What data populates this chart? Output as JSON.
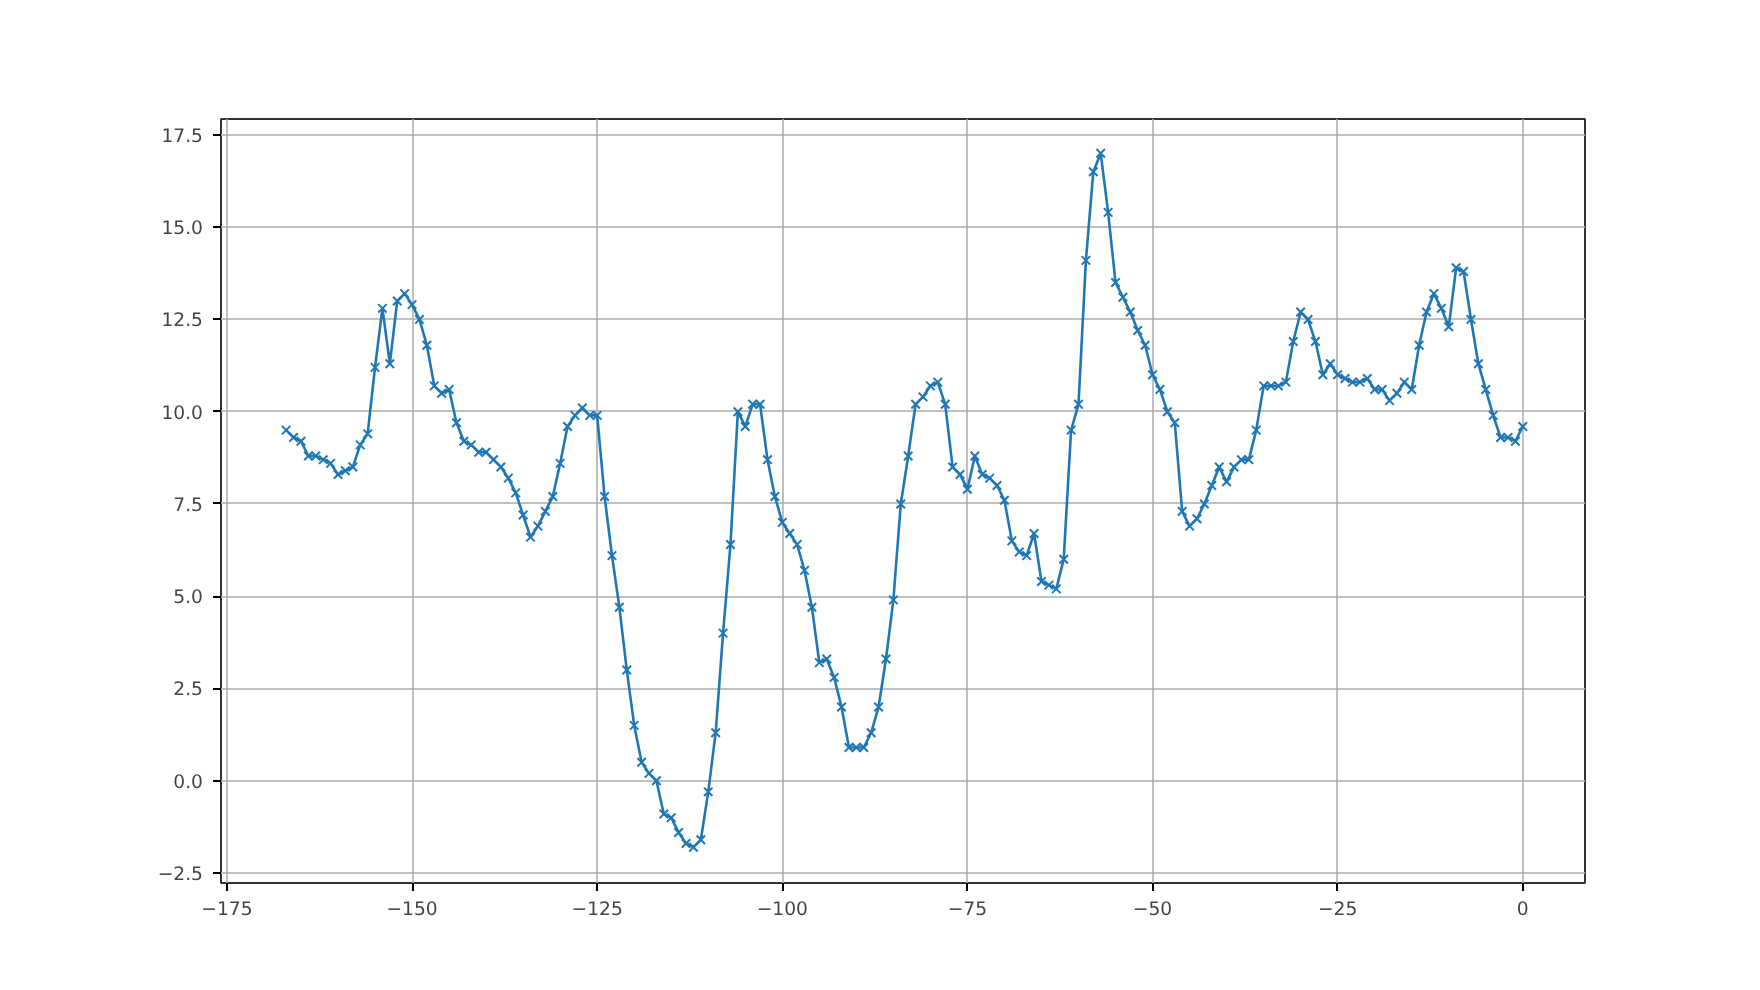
{
  "chart_data": {
    "type": "line",
    "x": [
      -167,
      -166,
      -165,
      -164,
      -163,
      -162,
      -161,
      -160,
      -159,
      -158,
      -157,
      -156,
      -155,
      -154,
      -153,
      -152,
      -151,
      -150,
      -149,
      -148,
      -147,
      -146,
      -145,
      -144,
      -143,
      -142,
      -141,
      -140,
      -139,
      -138,
      -137,
      -136,
      -135,
      -134,
      -133,
      -132,
      -131,
      -130,
      -129,
      -128,
      -127,
      -126,
      -125,
      -124,
      -123,
      -122,
      -121,
      -120,
      -119,
      -118,
      -117,
      -116,
      -115,
      -114,
      -113,
      -112,
      -111,
      -110,
      -109,
      -108,
      -107,
      -106,
      -105,
      -104,
      -103,
      -102,
      -101,
      -100,
      -99,
      -98,
      -97,
      -96,
      -95,
      -94,
      -93,
      -92,
      -91,
      -90,
      -89,
      -88,
      -87,
      -86,
      -85,
      -84,
      -83,
      -82,
      -81,
      -80,
      -79,
      -78,
      -77,
      -76,
      -75,
      -74,
      -73,
      -72,
      -71,
      -70,
      -69,
      -68,
      -67,
      -66,
      -65,
      -64,
      -63,
      -62,
      -61,
      -60,
      -59,
      -58,
      -57,
      -56,
      -55,
      -54,
      -53,
      -52,
      -51,
      -50,
      -49,
      -48,
      -47,
      -46,
      -45,
      -44,
      -43,
      -42,
      -41,
      -40,
      -39,
      -38,
      -37,
      -36,
      -35,
      -34,
      -33,
      -32,
      -31,
      -30,
      -29,
      -28,
      -27,
      -26,
      -25,
      -24,
      -23,
      -22,
      -21,
      -20,
      -19,
      -18,
      -17,
      -16,
      -15,
      -14,
      -13,
      -12,
      -11,
      -10,
      -9,
      -8,
      -7,
      -6,
      -5,
      -4,
      -3,
      -2,
      -1,
      0
    ],
    "series": [
      {
        "color": "#1f77b4",
        "values": [
          9.5,
          9.3,
          9.2,
          8.8,
          8.8,
          8.7,
          8.6,
          8.3,
          8.4,
          8.5,
          9.1,
          9.4,
          11.2,
          12.8,
          11.3,
          13.0,
          13.2,
          12.9,
          12.5,
          11.8,
          10.7,
          10.5,
          10.6,
          9.7,
          9.2,
          9.1,
          8.9,
          8.9,
          8.7,
          8.5,
          8.2,
          7.8,
          7.2,
          6.6,
          6.9,
          7.3,
          7.7,
          8.6,
          9.6,
          9.9,
          10.1,
          9.9,
          9.9,
          7.7,
          6.1,
          4.7,
          3.0,
          1.5,
          0.5,
          0.2,
          0.0,
          -0.9,
          -1.0,
          -1.4,
          -1.7,
          -1.8,
          -1.6,
          -0.3,
          1.3,
          4.0,
          6.4,
          10.0,
          9.6,
          10.2,
          10.2,
          8.7,
          7.7,
          7.0,
          6.7,
          6.4,
          5.7,
          4.7,
          3.2,
          3.3,
          2.8,
          2.0,
          0.9,
          0.9,
          0.9,
          1.3,
          2.0,
          3.3,
          4.9,
          7.5,
          8.8,
          10.2,
          10.4,
          10.7,
          10.8,
          10.2,
          8.5,
          8.3,
          7.9,
          8.8,
          8.3,
          8.2,
          8.0,
          7.6,
          6.5,
          6.2,
          6.1,
          6.7,
          5.4,
          5.3,
          5.2,
          6.0,
          9.5,
          10.2,
          14.1,
          16.5,
          17.0,
          15.4,
          13.5,
          13.1,
          12.7,
          12.2,
          11.8,
          11.0,
          10.6,
          10.0,
          9.7,
          7.3,
          6.9,
          7.1,
          7.5,
          8.0,
          8.5,
          8.1,
          8.5,
          8.7,
          8.7,
          9.5,
          10.7,
          10.7,
          10.7,
          10.8,
          11.9,
          12.7,
          12.5,
          11.9,
          11.0,
          11.3,
          11.0,
          10.9,
          10.8,
          10.8,
          10.9,
          10.6,
          10.6,
          10.3,
          10.5,
          10.8,
          10.6,
          11.8,
          12.7,
          13.2,
          12.8,
          12.3,
          13.9,
          13.8,
          12.5,
          11.3,
          10.6,
          9.9,
          9.3,
          9.3,
          9.2,
          9.6
        ]
      }
    ],
    "marker": "cross",
    "line_style": "solid",
    "grid": true,
    "xlim": [
      -175.8,
      8.4
    ],
    "xticks": [
      {
        "value": -175,
        "label": "−175"
      },
      {
        "value": -150,
        "label": "−150"
      },
      {
        "value": -125,
        "label": "−125"
      },
      {
        "value": -100,
        "label": "−100"
      },
      {
        "value": -75,
        "label": "−75"
      },
      {
        "value": -50,
        "label": "−50"
      },
      {
        "value": -25,
        "label": "−25"
      },
      0
    ],
    "ylim": [
      -2.77,
      17.93
    ],
    "yticks": [
      {
        "value": -2.5,
        "label": "−2.5"
      },
      {
        "value": 0,
        "label": "0.0"
      },
      2.5,
      {
        "value": 5,
        "label": "5.0"
      },
      7.5,
      {
        "value": 10,
        "label": "10.0"
      },
      12.5,
      {
        "value": 15,
        "label": "15.0"
      },
      17.5
    ]
  }
}
